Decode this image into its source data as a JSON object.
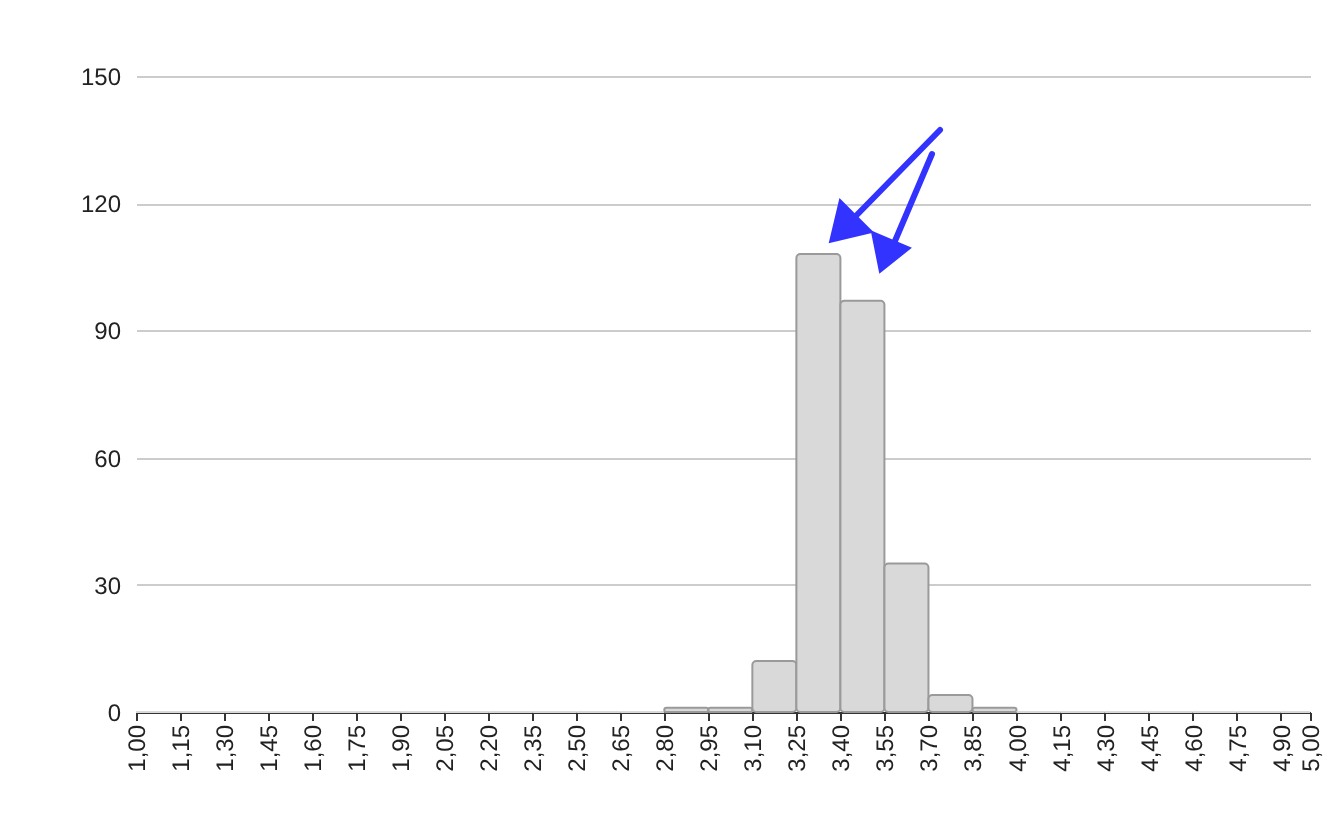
{
  "chart_data": {
    "type": "histogram",
    "bins": [
      1.0,
      1.15,
      1.3,
      1.45,
      1.6,
      1.75,
      1.9,
      2.05,
      2.2,
      2.35,
      2.5,
      2.65,
      2.8,
      2.95,
      3.1,
      3.25,
      3.4,
      3.55,
      3.7,
      3.85,
      4.0,
      4.15,
      4.3,
      4.45,
      4.6,
      4.75,
      4.9,
      5.0
    ],
    "values": [
      0,
      0,
      0,
      0,
      0,
      0,
      0,
      0,
      0,
      0,
      0,
      0,
      1,
      1,
      12,
      108,
      97,
      35,
      4,
      1,
      0,
      0,
      0,
      0,
      0,
      0,
      0
    ],
    "color": "#d9d9d9",
    "xlim": [
      1.0,
      5.0
    ],
    "xticks": [
      {
        "value": 1.0,
        "label": "1,00"
      },
      {
        "value": 1.15,
        "label": "1,15"
      },
      {
        "value": 1.3,
        "label": "1,30"
      },
      {
        "value": 1.45,
        "label": "1,45"
      },
      {
        "value": 1.6,
        "label": "1,60"
      },
      {
        "value": 1.75,
        "label": "1,75"
      },
      {
        "value": 1.9,
        "label": "1,90"
      },
      {
        "value": 2.05,
        "label": "2,05"
      },
      {
        "value": 2.2,
        "label": "2,20"
      },
      {
        "value": 2.35,
        "label": "2,35"
      },
      {
        "value": 2.5,
        "label": "2,50"
      },
      {
        "value": 2.65,
        "label": "2,65"
      },
      {
        "value": 2.8,
        "label": "2,80"
      },
      {
        "value": 2.95,
        "label": "2,95"
      },
      {
        "value": 3.1,
        "label": "3,10"
      },
      {
        "value": 3.25,
        "label": "3,25"
      },
      {
        "value": 3.4,
        "label": "3,40"
      },
      {
        "value": 3.55,
        "label": "3,55"
      },
      {
        "value": 3.7,
        "label": "3,70"
      },
      {
        "value": 3.85,
        "label": "3,85"
      },
      {
        "value": 4.0,
        "label": "4,00"
      },
      {
        "value": 4.15,
        "label": "4,15"
      },
      {
        "value": 4.3,
        "label": "4,30"
      },
      {
        "value": 4.45,
        "label": "4,45"
      },
      {
        "value": 4.6,
        "label": "4,60"
      },
      {
        "value": 4.75,
        "label": "4,75"
      },
      {
        "value": 4.9,
        "label": "4,90"
      },
      {
        "value": 5.0,
        "label": "5,00"
      }
    ],
    "ylim": [
      0,
      150
    ],
    "yticks": [
      0,
      30,
      60,
      90,
      120,
      150
    ],
    "grid": "y"
  }
}
